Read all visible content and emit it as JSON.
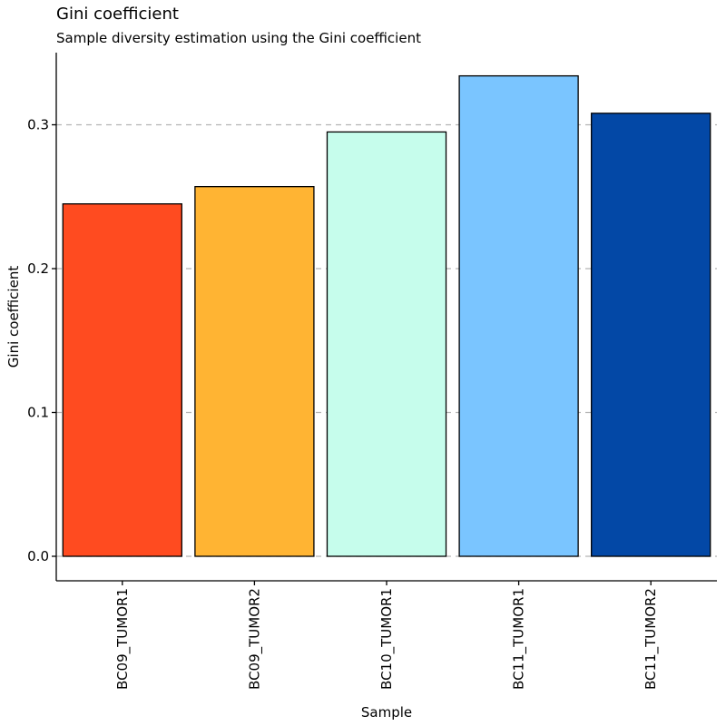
{
  "chart_data": {
    "type": "bar",
    "title": "Gini coefficient",
    "subtitle": "Sample diversity estimation using the Gini coefficient",
    "xlabel": "Sample",
    "ylabel": "Gini coefficient",
    "categories": [
      "BC09_TUMOR1",
      "BC09_TUMOR2",
      "BC10_TUMOR1",
      "BC11_TUMOR1",
      "BC11_TUMOR2"
    ],
    "values": [
      0.245,
      0.257,
      0.295,
      0.334,
      0.308
    ],
    "colors": [
      "#ff4b20",
      "#ffb433",
      "#c6fdec",
      "#7ac5ff",
      "#0348a6"
    ],
    "yticks": [
      "0.0",
      "0.1",
      "0.2",
      "0.3"
    ],
    "ytick_values": [
      0.0,
      0.1,
      0.2,
      0.3
    ],
    "ylim": [
      -0.0165,
      0.35
    ],
    "grid": "horizontal dashed at y ticks",
    "legend": "none"
  }
}
